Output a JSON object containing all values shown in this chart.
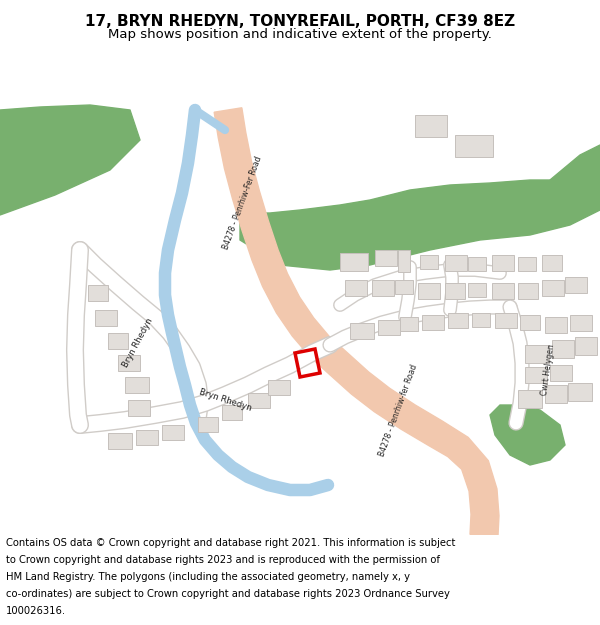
{
  "title": "17, BRYN RHEDYN, TONYREFAIL, PORTH, CF39 8EZ",
  "subtitle": "Map shows position and indicative extent of the property.",
  "footer_lines": [
    "Contains OS data © Crown copyright and database right 2021. This information is subject",
    "to Crown copyright and database rights 2023 and is reproduced with the permission of",
    "HM Land Registry. The polygons (including the associated geometry, namely x, y",
    "co-ordinates) are subject to Crown copyright and database rights 2023 Ordnance Survey",
    "100026316."
  ],
  "title_fontsize": 11,
  "subtitle_fontsize": 9.5,
  "footer_fontsize": 7.2,
  "map_bg": "#f8f7f5",
  "road_main_color": "#f2c8ae",
  "water_color": "#aacfe8",
  "green_color": "#78b06e",
  "building_fill": "#e2deda",
  "building_edge": "#c5c0bc",
  "plot_color": "#dd0000",
  "white_road": "#ffffff",
  "road_edge": "#d0ccc8",
  "bg_color": "#ffffff"
}
